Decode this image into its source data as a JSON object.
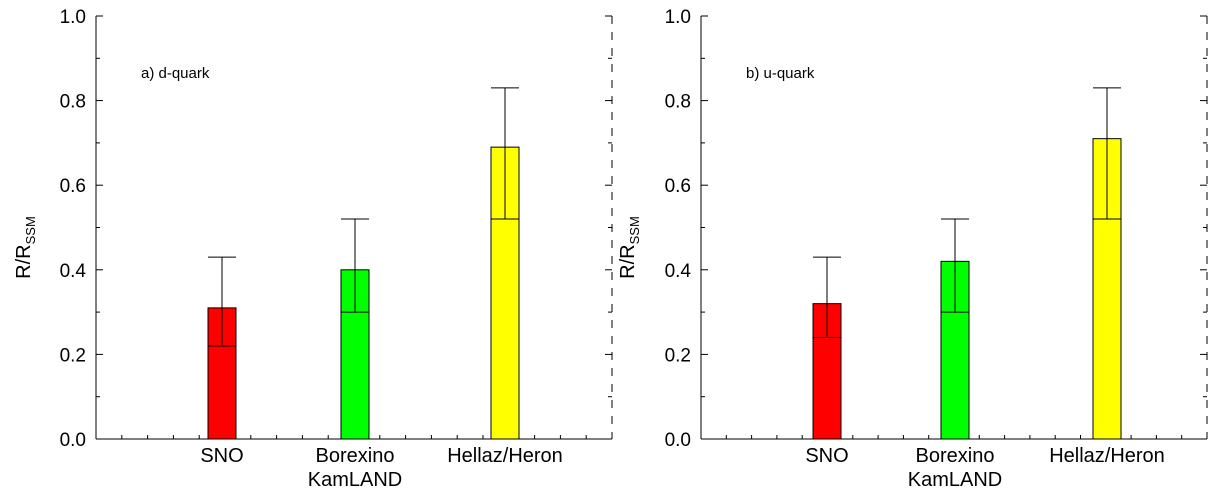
{
  "chart_data": [
    {
      "type": "bar",
      "panel_label": "a) d-quark",
      "ylabel": {
        "main": "R/R",
        "subscript": "SSM"
      },
      "ylim": [
        0,
        1.0
      ],
      "yticks": [
        "0.0",
        "0.2",
        "0.4",
        "0.6",
        "0.8",
        "1.0"
      ],
      "categories": [
        [
          "SNO"
        ],
        [
          "Borexino",
          "KamLAND"
        ],
        [
          "Hellaz/Heron"
        ]
      ],
      "values": [
        0.31,
        0.4,
        0.69
      ],
      "error_low": [
        0.22,
        0.3,
        0.52
      ],
      "error_high": [
        0.43,
        0.52,
        0.83
      ],
      "colors": [
        "#ff0000",
        "#00ff00",
        "#ffff00"
      ],
      "grid": false
    },
    {
      "type": "bar",
      "panel_label": "b) u-quark",
      "ylabel": {
        "main": "R/R",
        "subscript": "SSM"
      },
      "ylim": [
        0,
        1.0
      ],
      "yticks": [
        "0.0",
        "0.2",
        "0.4",
        "0.6",
        "0.8",
        "1.0"
      ],
      "categories": [
        [
          "SNO"
        ],
        [
          "Borexino",
          "KamLAND"
        ],
        [
          "Hellaz/Heron"
        ]
      ],
      "values": [
        0.32,
        0.42,
        0.71
      ],
      "error_low": [
        0.24,
        0.3,
        0.52
      ],
      "error_high": [
        0.43,
        0.52,
        0.83
      ],
      "colors": [
        "#ff0000",
        "#00ff00",
        "#ffff00"
      ],
      "grid": false
    }
  ]
}
